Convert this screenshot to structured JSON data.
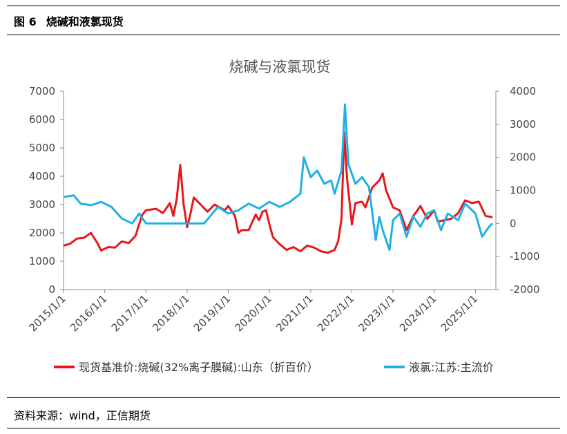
{
  "figure": {
    "number": "图 6",
    "caption": "烧碱和液氯现货",
    "source": "资料来源：wind，正信期货"
  },
  "chart_data": {
    "type": "line",
    "title": "烧碱与液氯现货",
    "x_tick_labels": [
      "2015/1/1",
      "2016/1/1",
      "2017/1/1",
      "2018/1/1",
      "2019/1/1",
      "2020/1/1",
      "2021/1/1",
      "2022/1/1",
      "2023/1/1",
      "2024/1/1",
      "2025/1/1"
    ],
    "y_left": {
      "min": 0,
      "max": 7000,
      "ticks": [
        0,
        1000,
        2000,
        3000,
        4000,
        5000,
        6000,
        7000
      ]
    },
    "y_right": {
      "min": -2000,
      "max": 4000,
      "ticks": [
        -2000,
        -1000,
        0,
        1000,
        2000,
        3000,
        4000
      ]
    },
    "legend_position": "bottom",
    "series": [
      {
        "name": "现货基准价:烧碱(32%离子膜碱):山东（折百价）",
        "axis": "left",
        "color": "#e8161a",
        "points": [
          [
            "2015-01-01",
            1550
          ],
          [
            "2015-03-01",
            1620
          ],
          [
            "2015-05-01",
            1800
          ],
          [
            "2015-07-01",
            1830
          ],
          [
            "2015-09-01",
            2000
          ],
          [
            "2015-11-01",
            1620
          ],
          [
            "2015-12-01",
            1380
          ],
          [
            "2016-02-01",
            1500
          ],
          [
            "2016-04-01",
            1480
          ],
          [
            "2016-06-01",
            1700
          ],
          [
            "2016-08-01",
            1640
          ],
          [
            "2016-10-01",
            1900
          ],
          [
            "2016-11-01",
            2300
          ],
          [
            "2016-12-01",
            2650
          ],
          [
            "2017-01-01",
            2800
          ],
          [
            "2017-04-01",
            2850
          ],
          [
            "2017-06-01",
            2700
          ],
          [
            "2017-08-01",
            3050
          ],
          [
            "2017-09-01",
            2600
          ],
          [
            "2017-10-01",
            3200
          ],
          [
            "2017-11-01",
            4400
          ],
          [
            "2017-12-01",
            3000
          ],
          [
            "2018-01-01",
            2200
          ],
          [
            "2018-02-01",
            2700
          ],
          [
            "2018-03-01",
            3250
          ],
          [
            "2018-05-01",
            3000
          ],
          [
            "2018-07-01",
            2750
          ],
          [
            "2018-09-01",
            3000
          ],
          [
            "2018-12-01",
            2800
          ],
          [
            "2019-01-01",
            2950
          ],
          [
            "2019-03-01",
            2600
          ],
          [
            "2019-04-01",
            2000
          ],
          [
            "2019-05-01",
            2100
          ],
          [
            "2019-07-01",
            2100
          ],
          [
            "2019-09-01",
            2650
          ],
          [
            "2019-10-01",
            2450
          ],
          [
            "2019-11-01",
            2750
          ],
          [
            "2019-12-01",
            2800
          ],
          [
            "2020-01-01",
            2300
          ],
          [
            "2020-02-01",
            1850
          ],
          [
            "2020-04-01",
            1600
          ],
          [
            "2020-06-01",
            1400
          ],
          [
            "2020-08-01",
            1500
          ],
          [
            "2020-10-01",
            1350
          ],
          [
            "2020-12-01",
            1550
          ],
          [
            "2021-02-01",
            1480
          ],
          [
            "2021-04-01",
            1350
          ],
          [
            "2021-06-01",
            1300
          ],
          [
            "2021-08-01",
            1400
          ],
          [
            "2021-09-01",
            1700
          ],
          [
            "2021-10-01",
            2500
          ],
          [
            "2021-10-25",
            5550
          ],
          [
            "2021-11-20",
            3900
          ],
          [
            "2022-01-01",
            2300
          ],
          [
            "2022-02-01",
            3050
          ],
          [
            "2022-04-01",
            3100
          ],
          [
            "2022-05-01",
            2900
          ],
          [
            "2022-07-01",
            3600
          ],
          [
            "2022-09-01",
            3850
          ],
          [
            "2022-10-01",
            4100
          ],
          [
            "2022-11-01",
            3500
          ],
          [
            "2023-01-01",
            2900
          ],
          [
            "2023-03-01",
            2800
          ],
          [
            "2023-05-01",
            2100
          ],
          [
            "2023-07-01",
            2600
          ],
          [
            "2023-09-01",
            2950
          ],
          [
            "2023-11-01",
            2500
          ],
          [
            "2024-01-01",
            2800
          ],
          [
            "2024-02-01",
            2400
          ],
          [
            "2024-04-01",
            2450
          ],
          [
            "2024-06-01",
            2500
          ],
          [
            "2024-08-01",
            2700
          ],
          [
            "2024-10-01",
            3150
          ],
          [
            "2024-12-01",
            3050
          ],
          [
            "2025-02-01",
            3100
          ],
          [
            "2025-04-01",
            2600
          ],
          [
            "2025-06-01",
            2550
          ]
        ]
      },
      {
        "name": "液氯:江苏:主流价",
        "axis": "right",
        "color": "#1fb0e6",
        "points": [
          [
            "2015-01-01",
            800
          ],
          [
            "2015-04-01",
            850
          ],
          [
            "2015-06-01",
            600
          ],
          [
            "2015-09-01",
            550
          ],
          [
            "2015-12-01",
            650
          ],
          [
            "2016-03-01",
            500
          ],
          [
            "2016-06-01",
            150
          ],
          [
            "2016-09-01",
            0
          ],
          [
            "2016-11-01",
            300
          ],
          [
            "2017-01-01",
            0
          ],
          [
            "2017-06-01",
            0
          ],
          [
            "2017-09-01",
            0
          ],
          [
            "2018-01-01",
            0
          ],
          [
            "2018-06-01",
            0
          ],
          [
            "2018-10-01",
            500
          ],
          [
            "2019-01-01",
            300
          ],
          [
            "2019-04-01",
            400
          ],
          [
            "2019-07-01",
            600
          ],
          [
            "2019-10-01",
            450
          ],
          [
            "2020-01-01",
            650
          ],
          [
            "2020-04-01",
            500
          ],
          [
            "2020-07-01",
            650
          ],
          [
            "2020-10-01",
            900
          ],
          [
            "2020-11-01",
            2000
          ],
          [
            "2021-01-01",
            1400
          ],
          [
            "2021-03-01",
            1600
          ],
          [
            "2021-05-01",
            1200
          ],
          [
            "2021-07-01",
            1300
          ],
          [
            "2021-08-01",
            900
          ],
          [
            "2021-10-01",
            1600
          ],
          [
            "2021-11-01",
            3600
          ],
          [
            "2021-12-01",
            1800
          ],
          [
            "2022-02-01",
            1200
          ],
          [
            "2022-04-01",
            1400
          ],
          [
            "2022-06-01",
            1100
          ],
          [
            "2022-08-01",
            -500
          ],
          [
            "2022-09-01",
            200
          ],
          [
            "2022-10-01",
            -200
          ],
          [
            "2022-12-01",
            -800
          ],
          [
            "2023-01-01",
            100
          ],
          [
            "2023-03-01",
            300
          ],
          [
            "2023-05-01",
            -400
          ],
          [
            "2023-07-01",
            200
          ],
          [
            "2023-09-01",
            -100
          ],
          [
            "2023-11-01",
            300
          ],
          [
            "2024-01-01",
            400
          ],
          [
            "2024-03-01",
            -200
          ],
          [
            "2024-05-01",
            300
          ],
          [
            "2024-08-01",
            100
          ],
          [
            "2024-10-01",
            600
          ],
          [
            "2025-01-01",
            300
          ],
          [
            "2025-03-01",
            -400
          ],
          [
            "2025-05-01",
            -100
          ],
          [
            "2025-06-01",
            0
          ]
        ]
      }
    ]
  }
}
